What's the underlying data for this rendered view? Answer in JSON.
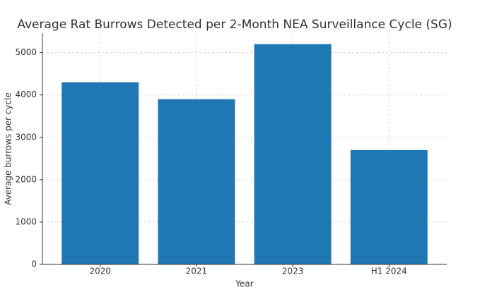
{
  "chart_data": {
    "type": "bar",
    "title": "Average Rat Burrows Detected per 2-Month NEA Surveillance Cycle (SG)",
    "x_label": "Year",
    "y_label": "Average burrows per cycle",
    "categories": [
      "2020",
      "2021",
      "2023",
      "H1 2024"
    ],
    "values": [
      4300,
      3900,
      5200,
      2700
    ],
    "color": "#1f77b4",
    "ylim": [
      0,
      5460
    ],
    "yticks": [
      0,
      1000,
      2000,
      3000,
      4000,
      5000
    ],
    "grid": true
  }
}
